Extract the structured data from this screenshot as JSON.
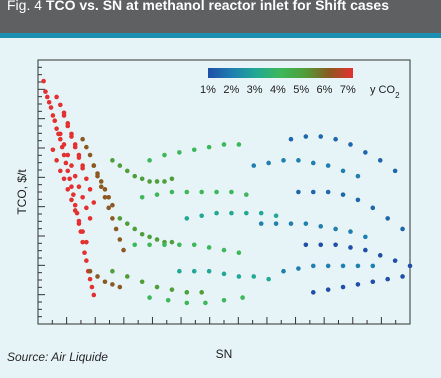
{
  "figure": {
    "label": "Fig. 4",
    "title": "TCO vs. SN at methanol reactor inlet for Shift cases",
    "source": "Source: Air Liquide"
  },
  "chart_data": {
    "type": "scatter",
    "xlabel": "SN",
    "ylabel": "TCO, $/t",
    "colorbar": {
      "label": "y CO2",
      "ticks": [
        "1%",
        "2%",
        "3%",
        "4%",
        "5%",
        "6%",
        "7%"
      ],
      "colors": [
        "#1f4fa8",
        "#1f7fb0",
        "#22a894",
        "#3cb85a",
        "#4f9e3a",
        "#8a5a22",
        "#e33030"
      ],
      "range": [
        1,
        7
      ]
    },
    "x_range": [
      0,
      100
    ],
    "y_range": [
      0,
      100
    ],
    "grid": false,
    "colorbar_placement": "top-right",
    "regions": [
      {
        "name": "red",
        "value_yco2": 7,
        "description_points": [
          [
            3,
            90
          ],
          [
            8,
            70
          ],
          [
            12,
            55
          ],
          [
            14,
            35
          ]
        ]
      },
      {
        "name": "green",
        "value_yco2": 4,
        "description_points": [
          [
            20,
            45
          ],
          [
            35,
            55
          ],
          [
            45,
            50
          ]
        ]
      },
      {
        "name": "blue",
        "value_yco2": 1.5,
        "description_points": [
          [
            60,
            45
          ],
          [
            80,
            40
          ],
          [
            95,
            30
          ]
        ]
      }
    ],
    "points": [
      [
        1.5,
        92,
        7
      ],
      [
        2.0,
        88,
        7
      ],
      [
        2.5,
        86,
        7
      ],
      [
        3.0,
        84,
        7
      ],
      [
        3.5,
        82,
        7
      ],
      [
        4.0,
        79,
        7
      ],
      [
        4.5,
        77,
        7
      ],
      [
        5.0,
        74,
        7
      ],
      [
        5.5,
        72,
        7
      ],
      [
        6.0,
        70,
        7
      ],
      [
        6.5,
        67,
        7
      ],
      [
        7.0,
        64,
        7
      ],
      [
        7.5,
        61,
        7
      ],
      [
        8.0,
        58,
        7
      ],
      [
        8.5,
        55,
        7
      ],
      [
        9.0,
        52,
        7
      ],
      [
        9.5,
        49,
        7
      ],
      [
        10.0,
        45,
        7
      ],
      [
        10.5,
        42,
        7
      ],
      [
        11.0,
        38,
        7
      ],
      [
        11.5,
        35,
        7
      ],
      [
        12.0,
        31,
        7
      ],
      [
        12.5,
        27,
        7
      ],
      [
        13.0,
        24,
        7
      ],
      [
        13.5,
        20,
        7
      ],
      [
        14.0,
        17,
        7
      ],
      [
        14.5,
        14,
        7
      ],
      [
        15.0,
        11,
        7
      ],
      [
        4,
        66,
        7
      ],
      [
        5,
        62,
        7
      ],
      [
        6,
        58,
        7
      ],
      [
        7,
        55,
        7
      ],
      [
        8,
        51,
        7
      ],
      [
        9,
        47,
        7
      ],
      [
        10,
        43,
        7
      ],
      [
        11,
        39,
        7
      ],
      [
        12,
        35,
        7
      ],
      [
        13,
        31,
        7
      ],
      [
        6,
        72,
        7
      ],
      [
        7,
        68,
        7
      ],
      [
        8,
        64,
        7
      ],
      [
        9,
        60,
        7
      ],
      [
        10,
        56,
        7
      ],
      [
        11,
        52,
        7
      ],
      [
        12,
        48,
        7
      ],
      [
        13,
        44,
        7
      ],
      [
        14,
        40,
        7
      ],
      [
        7,
        80,
        7
      ],
      [
        8,
        76,
        7
      ],
      [
        9,
        71,
        7
      ],
      [
        10,
        67,
        7
      ],
      [
        11,
        63,
        7
      ],
      [
        12,
        59,
        7
      ],
      [
        13,
        55,
        7
      ],
      [
        14,
        51,
        7
      ],
      [
        15,
        46,
        7
      ],
      [
        5,
        86,
        7
      ],
      [
        6,
        83,
        7
      ],
      [
        7,
        79,
        7
      ],
      [
        8,
        75,
        7
      ],
      [
        9,
        72,
        7
      ],
      [
        10,
        68,
        7
      ],
      [
        11,
        64,
        7
      ],
      [
        12,
        60,
        7
      ],
      [
        15,
        60,
        6
      ],
      [
        16,
        56,
        6
      ],
      [
        17,
        52,
        6
      ],
      [
        18,
        48,
        6
      ],
      [
        19,
        44,
        6
      ],
      [
        20,
        40,
        6
      ],
      [
        21,
        36,
        6
      ],
      [
        22,
        32,
        6
      ],
      [
        23,
        28,
        6
      ],
      [
        12,
        70,
        6
      ],
      [
        13,
        67,
        6
      ],
      [
        14,
        64,
        6
      ],
      [
        15,
        60,
        6
      ],
      [
        16,
        57,
        6
      ],
      [
        17,
        54,
        6
      ],
      [
        18,
        51,
        6
      ],
      [
        19,
        48,
        6
      ],
      [
        20,
        45,
        6
      ],
      [
        14,
        20,
        6
      ],
      [
        16,
        18,
        6
      ],
      [
        18,
        16,
        6
      ],
      [
        20,
        15,
        6
      ],
      [
        22,
        14,
        6
      ],
      [
        20,
        62,
        5
      ],
      [
        22,
        60,
        5
      ],
      [
        24,
        58,
        5
      ],
      [
        26,
        56,
        5
      ],
      [
        28,
        55,
        5
      ],
      [
        30,
        54,
        5
      ],
      [
        32,
        54,
        5
      ],
      [
        34,
        54,
        5
      ],
      [
        36,
        55,
        5
      ],
      [
        22,
        40,
        5
      ],
      [
        24,
        38,
        5
      ],
      [
        26,
        36,
        5
      ],
      [
        28,
        34,
        5
      ],
      [
        30,
        33,
        5
      ],
      [
        32,
        32,
        5
      ],
      [
        34,
        31,
        5
      ],
      [
        36,
        31,
        5
      ],
      [
        20,
        20,
        5
      ],
      [
        24,
        18,
        5
      ],
      [
        28,
        16,
        5
      ],
      [
        32,
        14,
        5
      ],
      [
        36,
        13,
        5
      ],
      [
        40,
        12,
        5
      ],
      [
        44,
        12,
        5
      ],
      [
        30,
        62,
        4
      ],
      [
        34,
        64,
        4
      ],
      [
        38,
        65,
        4
      ],
      [
        42,
        66,
        4
      ],
      [
        46,
        67,
        4
      ],
      [
        50,
        68,
        4
      ],
      [
        54,
        68,
        4
      ],
      [
        28,
        48,
        4
      ],
      [
        32,
        49,
        4
      ],
      [
        36,
        50,
        4
      ],
      [
        40,
        50,
        4
      ],
      [
        44,
        50,
        4
      ],
      [
        48,
        50,
        4
      ],
      [
        52,
        50,
        4
      ],
      [
        56,
        49,
        4
      ],
      [
        26,
        30,
        4
      ],
      [
        30,
        30,
        4
      ],
      [
        34,
        30,
        4
      ],
      [
        38,
        30,
        4
      ],
      [
        42,
        30,
        4
      ],
      [
        46,
        29,
        4
      ],
      [
        50,
        28,
        4
      ],
      [
        54,
        27,
        4
      ],
      [
        30,
        10,
        4
      ],
      [
        35,
        9,
        4
      ],
      [
        40,
        8,
        4
      ],
      [
        45,
        8,
        4
      ],
      [
        50,
        9,
        4
      ],
      [
        55,
        10,
        4
      ],
      [
        40,
        40,
        3
      ],
      [
        44,
        41,
        3
      ],
      [
        48,
        42,
        3
      ],
      [
        52,
        42,
        3
      ],
      [
        56,
        42,
        3
      ],
      [
        60,
        42,
        3
      ],
      [
        64,
        41,
        3
      ],
      [
        38,
        20,
        3
      ],
      [
        42,
        20,
        3
      ],
      [
        46,
        20,
        3
      ],
      [
        50,
        19,
        3
      ],
      [
        54,
        18,
        3
      ],
      [
        58,
        18,
        3
      ],
      [
        62,
        17,
        3
      ],
      [
        58,
        60,
        2
      ],
      [
        62,
        61,
        2
      ],
      [
        66,
        62,
        2
      ],
      [
        70,
        62,
        2
      ],
      [
        74,
        61,
        2
      ],
      [
        78,
        60,
        2
      ],
      [
        82,
        58,
        2
      ],
      [
        86,
        56,
        2
      ],
      [
        60,
        38,
        2
      ],
      [
        64,
        38,
        2
      ],
      [
        68,
        38,
        2
      ],
      [
        72,
        38,
        2
      ],
      [
        76,
        37,
        2
      ],
      [
        80,
        36,
        2
      ],
      [
        84,
        35,
        2
      ],
      [
        88,
        33,
        2
      ],
      [
        66,
        20,
        2
      ],
      [
        70,
        21,
        2
      ],
      [
        74,
        22,
        2
      ],
      [
        78,
        22,
        2
      ],
      [
        82,
        22,
        2
      ],
      [
        86,
        22,
        2
      ],
      [
        90,
        22,
        2
      ],
      [
        68,
        70,
        1.5
      ],
      [
        72,
        71,
        1.5
      ],
      [
        76,
        71,
        1.5
      ],
      [
        80,
        70,
        1.5
      ],
      [
        84,
        68,
        1.5
      ],
      [
        88,
        65,
        1.5
      ],
      [
        92,
        62,
        1.5
      ],
      [
        96,
        58,
        1.5
      ],
      [
        70,
        50,
        1.5
      ],
      [
        74,
        50,
        1.5
      ],
      [
        78,
        50,
        1.5
      ],
      [
        82,
        49,
        1.5
      ],
      [
        86,
        47,
        1.5
      ],
      [
        90,
        44,
        1.5
      ],
      [
        94,
        40,
        1.5
      ],
      [
        98,
        36,
        1.5
      ],
      [
        72,
        30,
        1
      ],
      [
        76,
        30,
        1
      ],
      [
        80,
        30,
        1
      ],
      [
        84,
        29,
        1
      ],
      [
        88,
        28,
        1
      ],
      [
        92,
        26,
        1
      ],
      [
        96,
        24,
        1
      ],
      [
        100,
        22,
        1
      ],
      [
        74,
        12,
        1
      ],
      [
        78,
        13,
        1
      ],
      [
        82,
        14,
        1
      ],
      [
        86,
        15,
        1
      ],
      [
        90,
        16,
        1
      ],
      [
        94,
        17,
        1
      ],
      [
        98,
        18,
        1
      ]
    ]
  }
}
